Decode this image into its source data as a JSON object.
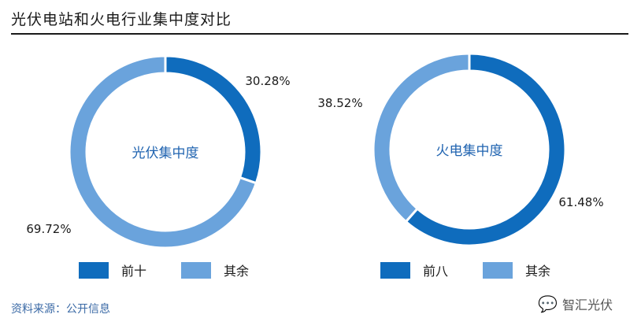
{
  "title": "光伏电站和火电行业集中度对比",
  "source": "资料来源：公开信息",
  "watermark": "智汇光伏",
  "chart_data": [
    {
      "type": "pie",
      "donut": true,
      "center_label": "光伏集中度",
      "slices": [
        {
          "name": "前十",
          "value": 30.28,
          "label": "30.28%",
          "color": "#0f6cbd"
        },
        {
          "name": "其余",
          "value": 69.72,
          "label": "69.72%",
          "color": "#6aa3dc"
        }
      ],
      "legend_placement": "bottom"
    },
    {
      "type": "pie",
      "donut": true,
      "center_label": "火电集中度",
      "slices": [
        {
          "name": "前八",
          "value": 61.48,
          "label": "61.48%",
          "color": "#0f6cbd"
        },
        {
          "name": "其余",
          "value": 38.52,
          "label": "38.52%",
          "color": "#6aa3dc"
        }
      ],
      "legend_placement": "bottom"
    }
  ]
}
